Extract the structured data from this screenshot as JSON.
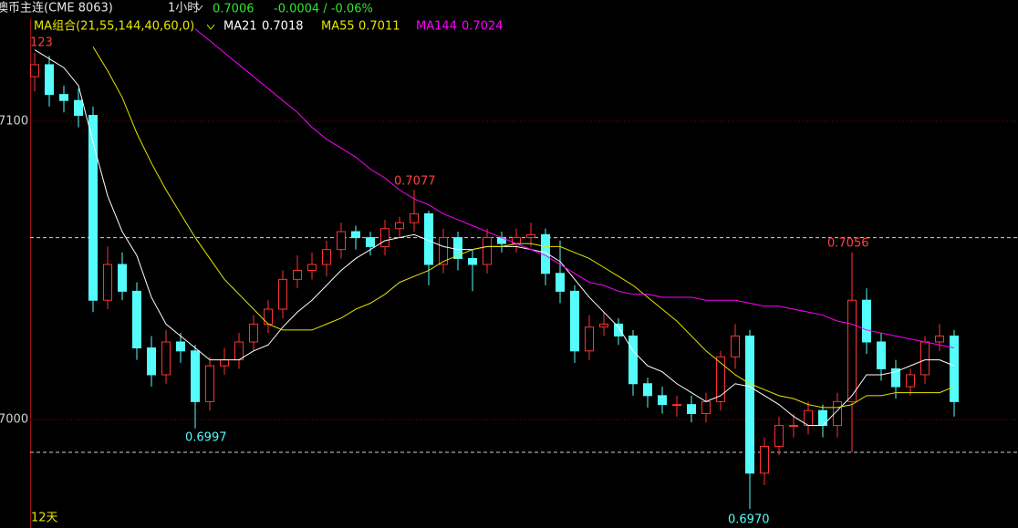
{
  "header": {
    "instrument": "澳币主连(CME 8063)",
    "period": "1小时",
    "change": "-0.0004 / -0.06%"
  },
  "chart_data": {
    "type": "candlestick",
    "indicator": "MA组合(21,55,144,40,60,0)",
    "range_label": "12天",
    "annotations": [
      "123",
      "0.7077",
      "0.6997",
      "0.7056",
      "0.6970"
    ],
    "ylim": [
      0.69636,
      0.71407
    ],
    "yticks": [
      {
        "value": 0.7,
        "label": "7000"
      },
      {
        "value": 0.71,
        "label": "7100"
      }
    ],
    "reference_lines": [
      0.7061,
      0.6989
    ],
    "up_color": "#ff3232",
    "down_color": "#54fcfc",
    "grid_color": "#8b0000",
    "open": [
      0.7115,
      0.7119,
      0.7109,
      0.7107,
      0.7102,
      0.704,
      0.7052,
      0.7043,
      0.7024,
      0.7015,
      0.7026,
      0.7023,
      0.7006,
      0.7018,
      0.702,
      0.7026,
      0.7032,
      0.7037,
      0.7047,
      0.705,
      0.7052,
      0.7057,
      0.7063,
      0.7061,
      0.7058,
      0.7064,
      0.7066,
      0.7069,
      0.7052,
      0.7061,
      0.7054,
      0.7052,
      0.7061,
      0.7059,
      0.7061,
      0.7062,
      0.7049,
      0.7043,
      0.7023,
      0.7031,
      0.7032,
      0.7028,
      0.7012,
      0.7008,
      0.7005,
      0.7005,
      0.7002,
      0.7006,
      0.7021,
      0.7028,
      0.6982,
      0.6991,
      0.6998,
      0.6998,
      0.7003,
      0.6998,
      0.7006,
      0.704,
      0.7026,
      0.7017,
      0.7011,
      0.7015,
      0.7026,
      0.7028
    ],
    "high": [
      0.7123,
      0.7122,
      0.7112,
      0.7111,
      0.7105,
      0.7058,
      0.7056,
      0.7046,
      0.7028,
      0.703,
      0.7029,
      0.7025,
      0.7021,
      0.7024,
      0.7029,
      0.7035,
      0.704,
      0.705,
      0.7055,
      0.7056,
      0.706,
      0.7066,
      0.7065,
      0.7063,
      0.7067,
      0.7068,
      0.7077,
      0.707,
      0.7064,
      0.7063,
      0.7057,
      0.7064,
      0.7063,
      0.7064,
      0.7066,
      0.7064,
      0.706,
      0.7045,
      0.7035,
      0.7036,
      0.7034,
      0.703,
      0.7014,
      0.7011,
      0.7008,
      0.7008,
      0.7009,
      0.7023,
      0.7032,
      0.703,
      0.6994,
      0.7001,
      0.7002,
      0.7006,
      0.7005,
      0.7009,
      0.7056,
      0.7044,
      0.7029,
      0.702,
      0.7017,
      0.7028,
      0.7032,
      0.703
    ],
    "low": [
      0.711,
      0.7105,
      0.7103,
      0.7098,
      0.7036,
      0.7037,
      0.704,
      0.702,
      0.7011,
      0.7012,
      0.7019,
      0.6997,
      0.7003,
      0.7015,
      0.7017,
      0.7023,
      0.7029,
      0.7034,
      0.7044,
      0.7047,
      0.7048,
      0.7054,
      0.7057,
      0.7055,
      0.7055,
      0.7061,
      0.7063,
      0.7045,
      0.7049,
      0.705,
      0.7043,
      0.7049,
      0.7056,
      0.7056,
      0.7058,
      0.7045,
      0.7039,
      0.7019,
      0.702,
      0.7028,
      0.7025,
      0.7008,
      0.7004,
      0.7002,
      0.7001,
      0.6999,
      0.6999,
      0.7003,
      0.7017,
      0.697,
      0.6978,
      0.6988,
      0.6994,
      0.6995,
      0.6994,
      0.6994,
      0.6989,
      0.7022,
      0.7013,
      0.7007,
      0.7008,
      0.7012,
      0.7023,
      0.7001
    ],
    "close": [
      0.7119,
      0.7109,
      0.7107,
      0.7102,
      0.704,
      0.7052,
      0.7043,
      0.7024,
      0.7015,
      0.7026,
      0.7023,
      0.7006,
      0.7018,
      0.702,
      0.7026,
      0.7032,
      0.7037,
      0.7047,
      0.705,
      0.7052,
      0.7057,
      0.7063,
      0.7061,
      0.7058,
      0.7064,
      0.7066,
      0.7069,
      0.7052,
      0.7061,
      0.7054,
      0.7052,
      0.7061,
      0.7059,
      0.7061,
      0.7062,
      0.7049,
      0.7043,
      0.7023,
      0.7031,
      0.7032,
      0.7028,
      0.7012,
      0.7008,
      0.7005,
      0.7005,
      0.7002,
      0.7006,
      0.7021,
      0.7028,
      0.6982,
      0.6991,
      0.6998,
      0.6998,
      0.7003,
      0.6998,
      0.7006,
      0.704,
      0.7026,
      0.7017,
      0.7011,
      0.7015,
      0.7026,
      0.7028,
      0.7006
    ],
    "series": [
      {
        "name": "MA21",
        "color": "#ffffff",
        "values": [
          0.7124,
          0.7121,
          0.7118,
          0.7112,
          0.7093,
          0.7075,
          0.7063,
          0.7055,
          0.7041,
          0.7032,
          0.7028,
          0.7024,
          0.702,
          0.702,
          0.702,
          0.7023,
          0.7025,
          0.7031,
          0.7036,
          0.704,
          0.7045,
          0.705,
          0.7054,
          0.7057,
          0.706,
          0.7061,
          0.7062,
          0.706,
          0.7058,
          0.7057,
          0.7057,
          0.7058,
          0.7058,
          0.7058,
          0.7057,
          0.7056,
          0.7053,
          0.7047,
          0.7041,
          0.7036,
          0.7031,
          0.7023,
          0.7018,
          0.7016,
          0.7012,
          0.7009,
          0.7006,
          0.7008,
          0.7012,
          0.7011,
          0.7008,
          0.7005,
          0.7001,
          0.6998,
          0.6998,
          0.7003,
          0.7008,
          0.7015,
          0.7015,
          0.7016,
          0.7018,
          0.702,
          0.702,
          0.7018
        ]
      },
      {
        "name": "MA55",
        "color": "#e6e600",
        "values": [
          null,
          null,
          null,
          null,
          0.7125,
          0.7117,
          0.7108,
          0.7096,
          0.7086,
          0.7077,
          0.7069,
          0.7061,
          0.7054,
          0.7047,
          0.7042,
          0.7037,
          0.7032,
          0.703,
          0.703,
          0.703,
          0.7032,
          0.7034,
          0.7037,
          0.7039,
          0.7042,
          0.7046,
          0.7048,
          0.705,
          0.7053,
          0.7055,
          0.7057,
          0.7058,
          0.7058,
          0.7059,
          0.7059,
          0.7058,
          0.7058,
          0.7056,
          0.7054,
          0.7051,
          0.7048,
          0.7045,
          0.7041,
          0.7037,
          0.7033,
          0.7028,
          0.7023,
          0.7019,
          0.7015,
          0.7012,
          0.701,
          0.7008,
          0.7007,
          0.7005,
          0.7004,
          0.7004,
          0.7005,
          0.7008,
          0.7008,
          0.7009,
          0.7009,
          0.7009,
          0.7009,
          0.7011
        ]
      },
      {
        "name": "MA144",
        "color": "#ff00ff",
        "values": [
          null,
          null,
          null,
          null,
          null,
          null,
          null,
          null,
          null,
          null,
          null,
          0.7131,
          0.7127,
          0.7123,
          0.7119,
          0.7115,
          0.7111,
          0.7107,
          0.7103,
          0.7098,
          0.7094,
          0.7091,
          0.7088,
          0.7084,
          0.7081,
          0.7077,
          0.7074,
          0.7072,
          0.7069,
          0.7067,
          0.7065,
          0.7063,
          0.7061,
          0.7059,
          0.7057,
          0.7055,
          0.7052,
          0.7049,
          0.7046,
          0.7045,
          0.7043,
          0.7042,
          0.7042,
          0.7041,
          0.7041,
          0.7041,
          0.704,
          0.704,
          0.704,
          0.7039,
          0.7038,
          0.7038,
          0.7037,
          0.7036,
          0.7035,
          0.7033,
          0.7032,
          0.703,
          0.7029,
          0.7028,
          0.7027,
          0.7026,
          0.7025,
          0.7024
        ]
      }
    ]
  }
}
